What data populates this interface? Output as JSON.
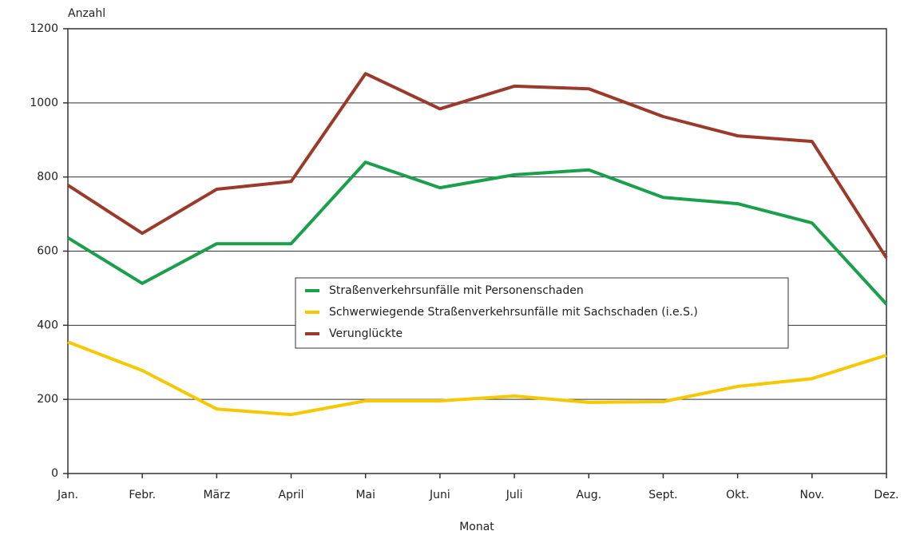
{
  "chart_data": {
    "type": "line",
    "y_label": "Anzahl",
    "x_label": "Monat",
    "categories": [
      "Jan.",
      "Febr.",
      "März",
      "April",
      "Mai",
      "Juni",
      "Juli",
      "Aug.",
      "Sept.",
      "Okt.",
      "Nov.",
      "Dez."
    ],
    "series": [
      {
        "name": "Straßenverkehrsunfälle mit Personenschaden",
        "color": "#1aa04a",
        "values": [
          636,
          513,
          620,
          620,
          840,
          771,
          806,
          819,
          745,
          728,
          676,
          457
        ]
      },
      {
        "name": "Schwerwiegende Straßenverkehrsunfälle mit Sachschaden (i.e.S.)",
        "color": "#f5c800",
        "values": [
          355,
          278,
          174,
          159,
          196,
          196,
          209,
          192,
          194,
          235,
          256,
          319
        ]
      },
      {
        "name": "Verunglückte",
        "color": "#9b3a2a",
        "values": [
          778,
          648,
          767,
          788,
          1079,
          984,
          1045,
          1038,
          963,
          911,
          896,
          582
        ]
      }
    ],
    "ylim": [
      0,
      1200
    ],
    "yticks": [
      0,
      200,
      400,
      600,
      800,
      1000,
      1200
    ],
    "grid": true,
    "legend": "center"
  }
}
